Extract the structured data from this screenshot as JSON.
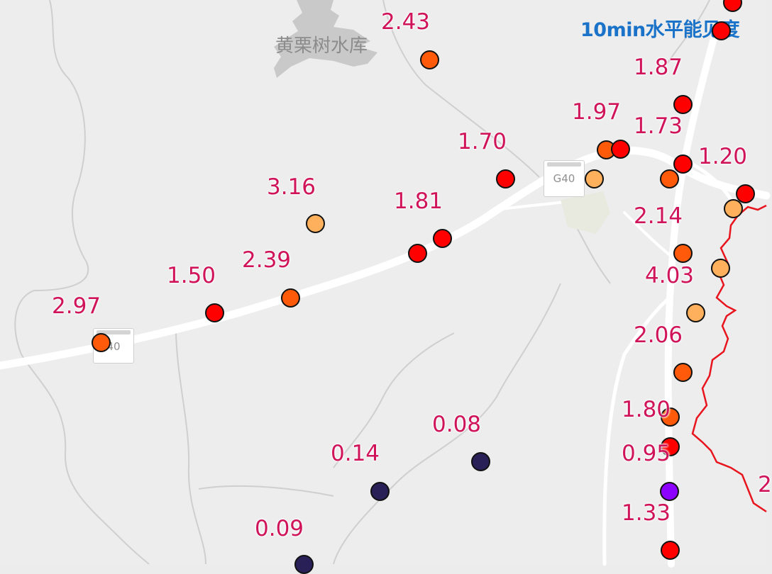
{
  "map": {
    "title": "10min水平能见度",
    "reservoir": "黄栗树水库",
    "road_shields": [
      "G40",
      "40"
    ]
  },
  "legend_colors": {
    "very_low": "#2a2058",
    "low": "#8b00ff",
    "mid": "#ff0000",
    "high": "#ff5a0a",
    "higher": "#ffb05c",
    "label": "#d0145a",
    "boundary": "#e8141e"
  },
  "stations": [
    {
      "id": "s1",
      "value": "2.43",
      "color": "#ff5a0a"
    },
    {
      "id": "s2",
      "value": "1.87",
      "color": "#ff0000"
    },
    {
      "id": "s3",
      "value": "1.97",
      "color": "#ff5a0a"
    },
    {
      "id": "s4",
      "value": "",
      "color": "#ff0000"
    },
    {
      "id": "s5",
      "value": "1.73",
      "color": "#ff0000"
    },
    {
      "id": "s6",
      "value": "1.70",
      "color": "#ff0000"
    },
    {
      "id": "s7",
      "value": "",
      "color": "#ffb05c"
    },
    {
      "id": "s8",
      "value": "",
      "color": "#ff5a0a"
    },
    {
      "id": "s9",
      "value": "1.20",
      "color": "#ff0000"
    },
    {
      "id": "s10",
      "value": "",
      "color": "#ffb05c"
    },
    {
      "id": "s11",
      "value": "3.16",
      "color": "#ffb05c"
    },
    {
      "id": "s12",
      "value": "1.81",
      "color": "#ff0000"
    },
    {
      "id": "s13",
      "value": "",
      "color": "#ff0000"
    },
    {
      "id": "s14",
      "value": "2.14",
      "color": "#ff5a0a"
    },
    {
      "id": "s15",
      "value": "2.39",
      "color": "#ff5a0a"
    },
    {
      "id": "s16",
      "value": "1.50",
      "color": "#ff0000"
    },
    {
      "id": "s17",
      "value": "4.03",
      "color": "#ffb05c"
    },
    {
      "id": "s18",
      "value": "",
      "color": "#ffb05c"
    },
    {
      "id": "s19",
      "value": "2.97",
      "color": "#ff5a0a"
    },
    {
      "id": "s20",
      "value": "2.06",
      "color": "#ff5a0a"
    },
    {
      "id": "s21",
      "value": "1.80",
      "color": "#ff5a0a"
    },
    {
      "id": "s22",
      "value": "0.95",
      "color": "#ff0000"
    },
    {
      "id": "s23",
      "value": "0.08",
      "color": "#2a2058"
    },
    {
      "id": "s24",
      "value": "0.14",
      "color": "#2a2058"
    },
    {
      "id": "s25",
      "value": "",
      "color": "#8b00ff"
    },
    {
      "id": "s26",
      "value": "1.33",
      "color": "#ff0000"
    },
    {
      "id": "s27",
      "value": "0.09",
      "color": "#2a2058"
    },
    {
      "id": "s28",
      "value": "",
      "color": "#ff0000"
    },
    {
      "id": "s29",
      "value": "",
      "color": "#ff0000"
    },
    {
      "id": "s30",
      "value": "2",
      "color": "#ff0000"
    }
  ]
}
